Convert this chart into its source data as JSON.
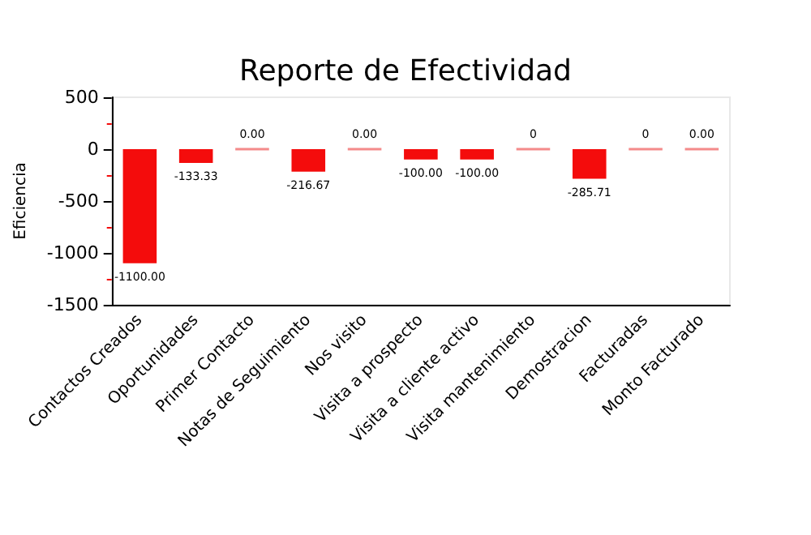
{
  "chart_data": {
    "type": "bar",
    "title": "Reporte de Efectividad",
    "ylabel": "Eficiencia",
    "categories": [
      "Contactos Creados",
      "Oportunidades",
      "Primer Contacto",
      "Notas de Seguimiento",
      "Nos visito",
      "Visita a prospecto",
      "Visita a cliente activo",
      "Visita mantenimiento",
      "Demostracion",
      "Facturadas",
      "Monto Facturado"
    ],
    "values": [
      -1100,
      -133.33,
      0,
      -216.67,
      0,
      -100,
      -100,
      0,
      -285.71,
      0,
      0
    ],
    "value_labels": [
      "-1100.00",
      "-133.33",
      "0.00",
      "-216.67",
      "0.00",
      "-100.00",
      "-100.00",
      "0",
      "-285.71",
      "0",
      "0.00"
    ],
    "colors": [
      "#f40c0c",
      "#f40c0c",
      "#f48a8a",
      "#f40c0c",
      "#f48a8a",
      "#f40c0c",
      "#f40c0c",
      "#f48a8a",
      "#f40c0c",
      "#f48a8a",
      "#f48a8a"
    ],
    "ylim": [
      -1500,
      500
    ],
    "yticks": [
      -1500,
      -1000,
      -500,
      0,
      500
    ]
  }
}
